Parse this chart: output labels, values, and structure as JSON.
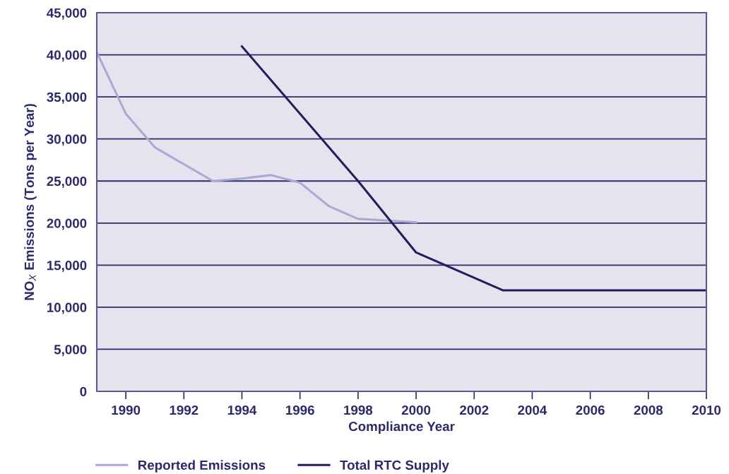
{
  "chart_data": {
    "type": "line",
    "xlabel": "Compliance Year",
    "ylabel": "NO$_{X}$ Emissions (Tons per Year)",
    "xlim": [
      1989,
      2010
    ],
    "xticks": [
      1990,
      1992,
      1994,
      1996,
      1998,
      2000,
      2002,
      2004,
      2006,
      2008,
      2010
    ],
    "ylim": [
      0,
      45000
    ],
    "yticks": [
      0,
      {
        "value": 5000,
        "label": "5,000"
      },
      {
        "value": 10000,
        "label": "10,000"
      },
      {
        "value": 15000,
        "label": "15,000"
      },
      {
        "value": 20000,
        "label": "20,000"
      },
      {
        "value": 25000,
        "label": "25,000"
      },
      {
        "value": 30000,
        "label": "30,000"
      },
      {
        "value": 35000,
        "label": "35,000"
      },
      {
        "value": 40000,
        "label": "40,000"
      },
      {
        "value": 45000,
        "label": "45,000"
      }
    ],
    "grid": "y",
    "legend": "bottom",
    "line_style": "solid",
    "series": [
      {
        "name": "Reported Emissions",
        "color": "#a9aad3",
        "x": [
          1989,
          1990,
          1991,
          1993,
          1994,
          1995,
          1996,
          1997,
          1998,
          2000
        ],
        "values": [
          40300,
          33000,
          29000,
          25000,
          25300,
          25700,
          24800,
          22000,
          20500,
          20100
        ]
      },
      {
        "name": "Total RTC Supply",
        "color": "#1f1f5e",
        "x": [
          1994,
          1998,
          2000,
          2003,
          2010
        ],
        "values": [
          41000,
          25000,
          16500,
          12000,
          12000
        ]
      }
    ]
  }
}
